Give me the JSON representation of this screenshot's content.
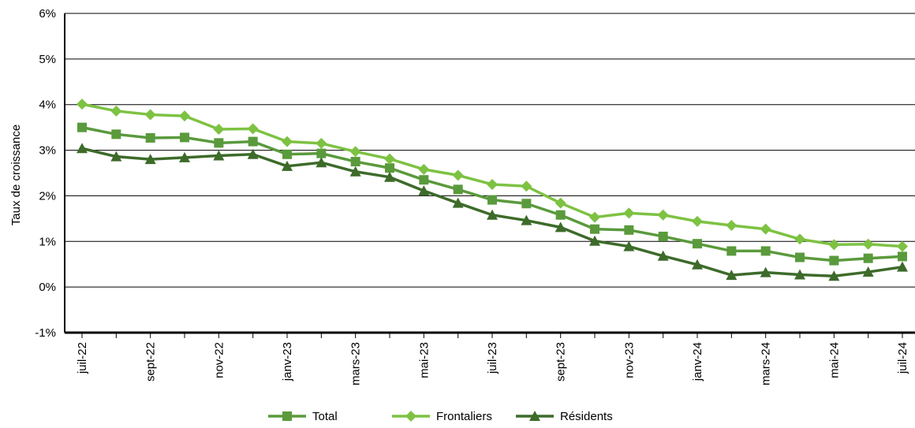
{
  "chart_data": {
    "type": "line",
    "title": "",
    "xlabel": "",
    "ylabel": "Taux de croissance",
    "ylim": [
      -1,
      6
    ],
    "y_ticks": [
      "-1%",
      "0%",
      "1%",
      "2%",
      "3%",
      "4%",
      "5%",
      "6%"
    ],
    "grid": "horizontal",
    "legend_position": "bottom",
    "x": [
      "juil-22",
      "août-22",
      "sept-22",
      "oct-22",
      "nov-22",
      "déc-22",
      "janv-23",
      "févr-23",
      "mars-23",
      "avr-23",
      "mai-23",
      "juin-23",
      "juil-23",
      "août-23",
      "sept-23",
      "oct-23",
      "nov-23",
      "déc-23",
      "janv-24",
      "févr-24",
      "mars-24",
      "avr-24",
      "mai-24",
      "juin-24",
      "juil-24"
    ],
    "x_tick_labels": [
      "juil-22",
      "sept-22",
      "nov-22",
      "janv-23",
      "mars-23",
      "mai-23",
      "juil-23",
      "sept-23",
      "nov-23",
      "janv-24",
      "mars-24",
      "mai-24",
      "juil-24"
    ],
    "series": [
      {
        "name": "Total",
        "color": "#5a9a3c",
        "marker": "square",
        "values": [
          3.5,
          3.35,
          3.27,
          3.28,
          3.16,
          3.19,
          2.91,
          2.93,
          2.75,
          2.61,
          2.35,
          2.14,
          1.91,
          1.83,
          1.58,
          1.27,
          1.25,
          1.11,
          0.95,
          0.79,
          0.79,
          0.65,
          0.58,
          0.63,
          0.67
        ]
      },
      {
        "name": "Frontaliers",
        "color": "#7dc242",
        "marker": "diamond",
        "values": [
          4.01,
          3.86,
          3.78,
          3.75,
          3.46,
          3.47,
          3.19,
          3.15,
          2.97,
          2.81,
          2.58,
          2.45,
          2.25,
          2.21,
          1.84,
          1.53,
          1.62,
          1.58,
          1.44,
          1.35,
          1.27,
          1.05,
          0.93,
          0.94,
          0.89
        ]
      },
      {
        "name": "Résidents",
        "color": "#3d6b2a",
        "marker": "triangle",
        "values": [
          3.04,
          2.86,
          2.8,
          2.84,
          2.88,
          2.91,
          2.65,
          2.73,
          2.53,
          2.41,
          2.11,
          1.84,
          1.58,
          1.46,
          1.31,
          1.01,
          0.89,
          0.68,
          0.49,
          0.26,
          0.32,
          0.27,
          0.24,
          0.33,
          0.44
        ]
      }
    ]
  }
}
